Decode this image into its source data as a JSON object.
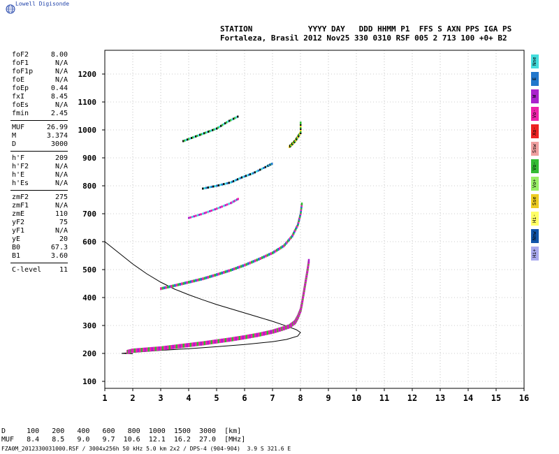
{
  "brand": "Lowell Digisonde",
  "header": {
    "line1": "STATION            YYYY DAY   DDD HHMM P1  FFS S AXN PPS IGA PS",
    "line2": "Fortaleza, Brasil 2012 Nov25 330 0310 RSF 005 2 713 100 +0+ B2"
  },
  "params_group1": [
    {
      "k": "foF2",
      "v": "8.00"
    },
    {
      "k": "foF1",
      "v": "N/A"
    },
    {
      "k": "foF1p",
      "v": "N/A"
    },
    {
      "k": "foE",
      "v": "N/A"
    },
    {
      "k": "foEp",
      "v": "0.44"
    },
    {
      "k": "fxI",
      "v": "8.45"
    },
    {
      "k": "foEs",
      "v": "N/A"
    },
    {
      "k": "fmin",
      "v": "2.45"
    }
  ],
  "params_group2": [
    {
      "k": "MUF",
      "v": "26.99"
    },
    {
      "k": "M",
      "v": "3.374"
    },
    {
      "k": "D",
      "v": "3000"
    }
  ],
  "params_group3": [
    {
      "k": "h'F",
      "v": "209"
    },
    {
      "k": "h'F2",
      "v": "N/A"
    },
    {
      "k": "h'E",
      "v": "N/A"
    },
    {
      "k": "h'Es",
      "v": "N/A"
    }
  ],
  "params_group4": [
    {
      "k": "zmF2",
      "v": "275"
    },
    {
      "k": "zmF1",
      "v": "N/A"
    },
    {
      "k": "zmE",
      "v": "110"
    },
    {
      "k": "yF2",
      "v": "75"
    },
    {
      "k": "yF1",
      "v": "N/A"
    },
    {
      "k": "yE",
      "v": "20"
    },
    {
      "k": "B0",
      "v": "67.3"
    },
    {
      "k": "B1",
      "v": "3.60"
    }
  ],
  "params_group5": [
    {
      "k": "C-level",
      "v": "11"
    }
  ],
  "legend": [
    {
      "label": "Nne",
      "color": "#44dddd"
    },
    {
      "label": "E",
      "color": "#2277cc"
    },
    {
      "label": "W",
      "color": "#aa22cc"
    },
    {
      "label": "Vo-",
      "color": "#ee22aa"
    },
    {
      "label": "Xo-",
      "color": "#ee2222"
    },
    {
      "label": "Ssw",
      "color": "#f0a0a0"
    },
    {
      "label": "Vo-",
      "color": "#33bb33"
    },
    {
      "label": "Vo+",
      "color": "#99ee66"
    },
    {
      "label": "Sse",
      "color": "#eecc22"
    },
    {
      "label": "Hi-",
      "color": "#ffff66"
    },
    {
      "label": "Nnw",
      "color": "#1155aa"
    },
    {
      "label": "Hi+",
      "color": "#aaaaee"
    }
  ],
  "bottom": {
    "row1": "D     100   200   400   600   800  1000  1500  3000  [km]",
    "row2": "MUF   8.4   8.5   9.0   9.7  10.6  12.1  16.2  27.0  [MHz]",
    "footer": "FZA0M_2012330031000.RSF / 3004x256h 50 kHz 5.0 km 2x2 / DPS-4 (904-904)  3.9 S 321.6 E"
  },
  "chart_data": {
    "type": "scatter",
    "title": "",
    "xlabel": "",
    "ylabel": "",
    "xlim": [
      1,
      16
    ],
    "ylim": [
      75,
      1285
    ],
    "xticks": [
      "1",
      "2",
      "3",
      "4",
      "5",
      "6",
      "7",
      "8",
      "9",
      "10",
      "11",
      "12",
      "13",
      "14",
      "15",
      "16"
    ],
    "yticks": [
      "100",
      "200",
      "300",
      "400",
      "500",
      "600",
      "700",
      "800",
      "900",
      "1000",
      "1100",
      "1200"
    ],
    "grid": true,
    "profile_curve": [
      [
        1.0,
        600
      ],
      [
        1.5,
        560
      ],
      [
        2.0,
        520
      ],
      [
        2.5,
        485
      ],
      [
        3.0,
        455
      ],
      [
        3.5,
        430
      ],
      [
        4.0,
        410
      ],
      [
        4.5,
        392
      ],
      [
        5.0,
        375
      ],
      [
        5.5,
        360
      ],
      [
        6.0,
        345
      ],
      [
        6.5,
        330
      ],
      [
        7.0,
        315
      ],
      [
        7.5,
        298
      ],
      [
        7.85,
        285
      ],
      [
        8.0,
        275
      ],
      [
        7.9,
        262
      ],
      [
        7.5,
        250
      ],
      [
        7.0,
        242
      ],
      [
        6.0,
        232
      ],
      [
        5.0,
        224
      ],
      [
        4.0,
        217
      ],
      [
        3.0,
        211
      ],
      [
        2.2,
        205
      ],
      [
        1.7,
        201
      ],
      [
        1.6,
        200
      ],
      [
        2.0,
        199
      ]
    ],
    "trace_main": [
      [
        1.8,
        205
      ],
      [
        2.0,
        210
      ],
      [
        2.5,
        214
      ],
      [
        3.0,
        218
      ],
      [
        3.5,
        224
      ],
      [
        4.0,
        230
      ],
      [
        4.5,
        236
      ],
      [
        5.0,
        243
      ],
      [
        5.5,
        250
      ],
      [
        6.0,
        258
      ],
      [
        6.5,
        267
      ],
      [
        7.0,
        278
      ],
      [
        7.3,
        287
      ],
      [
        7.6,
        297
      ],
      [
        7.8,
        312
      ],
      [
        7.9,
        330
      ],
      [
        8.0,
        355
      ],
      [
        8.05,
        380
      ],
      [
        8.1,
        410
      ],
      [
        8.15,
        440
      ],
      [
        8.2,
        470
      ],
      [
        8.25,
        500
      ],
      [
        8.3,
        535
      ]
    ],
    "trace_2hop": [
      [
        3.0,
        432
      ],
      [
        3.5,
        443
      ],
      [
        4.0,
        455
      ],
      [
        4.5,
        467
      ],
      [
        5.0,
        482
      ],
      [
        5.5,
        498
      ],
      [
        6.0,
        516
      ],
      [
        6.5,
        537
      ],
      [
        7.0,
        560
      ],
      [
        7.4,
        585
      ],
      [
        7.7,
        620
      ],
      [
        7.9,
        660
      ],
      [
        8.0,
        700
      ],
      [
        8.05,
        740
      ]
    ],
    "trace_3hop": [
      [
        4.0,
        685
      ],
      [
        4.5,
        700
      ],
      [
        5.0,
        718
      ],
      [
        5.5,
        738
      ],
      [
        5.8,
        755
      ]
    ],
    "trace_4hop": [
      [
        4.5,
        790
      ],
      [
        5.0,
        800
      ],
      [
        5.5,
        812
      ],
      [
        5.9,
        830
      ],
      [
        6.3,
        845
      ],
      [
        6.8,
        870
      ],
      [
        7.0,
        880
      ]
    ],
    "trace_5hop": [
      [
        3.8,
        960
      ],
      [
        4.2,
        975
      ],
      [
        4.6,
        990
      ],
      [
        5.0,
        1005
      ],
      [
        5.4,
        1030
      ],
      [
        5.8,
        1050
      ]
    ],
    "trace_high": [
      [
        7.6,
        940
      ],
      [
        7.8,
        960
      ],
      [
        8.0,
        990
      ],
      [
        8.0,
        1030
      ]
    ]
  }
}
